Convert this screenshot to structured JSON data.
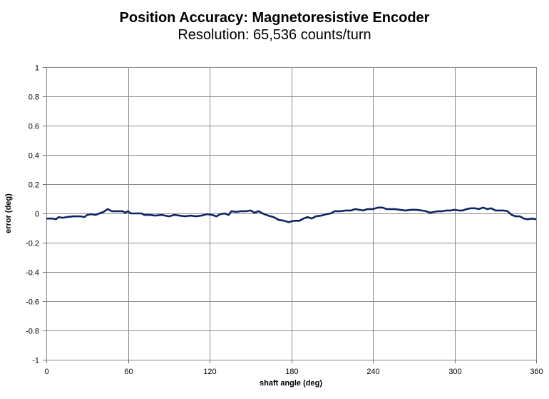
{
  "chart_data": {
    "type": "line",
    "title": "Position Accuracy: Magnetoresistive Encoder",
    "subtitle": "Resolution: 65,536 counts/turn",
    "xlabel": "shaft angle (deg)",
    "ylabel": "error (deg)",
    "xlim": [
      0,
      360
    ],
    "ylim": [
      -1,
      1
    ],
    "xticks": [
      0,
      60,
      120,
      180,
      240,
      300,
      360
    ],
    "yticks": [
      1,
      0.8,
      0.6,
      0.4,
      0.2,
      0,
      -0.2,
      -0.4,
      -0.6,
      -0.8,
      -1
    ],
    "ytick_labels": [
      "1",
      "0.8",
      "0.6",
      "0.4",
      "0.2",
      "0",
      "-0.2",
      "-0.4",
      "-0.6",
      "-0.8",
      "-1"
    ],
    "grid": true,
    "legend": null,
    "series": [
      {
        "name": "error",
        "color": "#0f2465",
        "x": [
          0,
          5,
          7,
          9,
          12,
          15,
          20,
          25,
          28,
          30,
          33,
          36,
          39,
          42,
          45,
          48,
          52,
          56,
          58,
          60,
          62,
          66,
          70,
          72,
          76,
          80,
          85,
          90,
          94,
          98,
          102,
          106,
          110,
          114,
          118,
          122,
          125,
          128,
          131,
          134,
          136,
          140,
          143,
          147,
          150,
          153,
          156,
          159,
          163,
          167,
          171,
          175,
          178,
          182,
          186,
          189,
          192,
          195,
          198,
          202,
          206,
          209,
          212,
          216,
          220,
          224,
          227,
          230,
          233,
          236,
          240,
          244,
          247,
          250,
          253,
          256,
          260,
          264,
          268,
          272,
          276,
          279,
          282,
          285,
          288,
          291,
          294,
          297,
          300,
          303,
          306,
          309,
          312,
          315,
          318,
          321,
          324,
          327,
          330,
          333,
          336,
          339,
          342,
          345,
          348,
          351,
          354,
          357,
          360
        ],
        "values": [
          -0.035,
          -0.035,
          -0.04,
          -0.025,
          -0.03,
          -0.025,
          -0.02,
          -0.02,
          -0.025,
          -0.01,
          -0.005,
          -0.01,
          0.0,
          0.01,
          0.03,
          0.015,
          0.015,
          0.015,
          0.005,
          0.015,
          0.0,
          0.0,
          0.0,
          -0.01,
          -0.01,
          -0.015,
          -0.01,
          -0.02,
          -0.01,
          -0.015,
          -0.02,
          -0.015,
          -0.02,
          -0.015,
          -0.005,
          -0.01,
          -0.02,
          -0.005,
          0.0,
          -0.01,
          0.015,
          0.01,
          0.015,
          0.015,
          0.02,
          0.005,
          0.015,
          0.0,
          -0.015,
          -0.025,
          -0.045,
          -0.05,
          -0.06,
          -0.05,
          -0.05,
          -0.035,
          -0.025,
          -0.035,
          -0.02,
          -0.015,
          -0.005,
          0.0,
          0.015,
          0.015,
          0.02,
          0.02,
          0.03,
          0.025,
          0.02,
          0.03,
          0.03,
          0.04,
          0.04,
          0.03,
          0.03,
          0.03,
          0.025,
          0.02,
          0.025,
          0.025,
          0.02,
          0.015,
          0.005,
          0.01,
          0.015,
          0.015,
          0.02,
          0.02,
          0.025,
          0.02,
          0.02,
          0.03,
          0.035,
          0.035,
          0.03,
          0.04,
          0.03,
          0.035,
          0.02,
          0.02,
          0.02,
          0.015,
          -0.01,
          -0.02,
          -0.02,
          -0.035,
          -0.04,
          -0.035,
          -0.04
        ]
      }
    ]
  },
  "style": {
    "grid_color": "#8a8a8a",
    "axis_color": "#6e6e6e",
    "line_color": "#0f2465"
  }
}
